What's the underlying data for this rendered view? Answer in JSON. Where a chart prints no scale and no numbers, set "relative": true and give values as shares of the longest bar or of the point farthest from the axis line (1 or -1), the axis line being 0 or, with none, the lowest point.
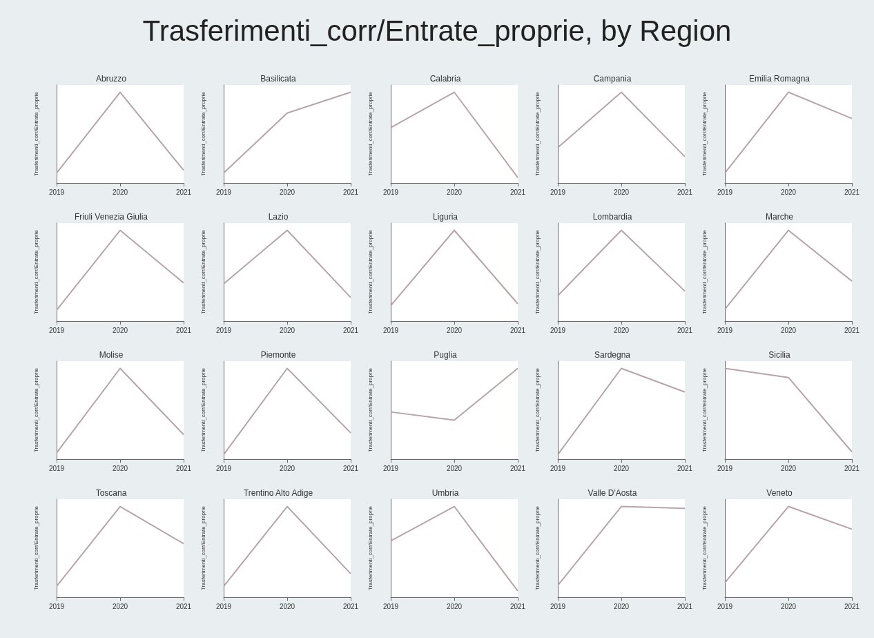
{
  "chart_data": [
    {
      "type": "other",
      "title": "Trasferimenti_corr/Entrate_proprie, by Region"
    },
    {
      "type": "line",
      "title": "Abruzzo",
      "ylabel": "Trasferimenti_corr/Entrate_proprie",
      "categories": [
        "2019",
        "2020",
        "2021"
      ],
      "relative": true,
      "color": "#b8a4a8",
      "values": [
        0.11,
        1,
        0.14
      ]
    },
    {
      "type": "line",
      "title": "Basilicata",
      "ylabel": "Trasferimenti_corr/Entrate_proprie",
      "categories": [
        "2019",
        "2020",
        "2021"
      ],
      "relative": true,
      "color": "#b8a4a8",
      "values": [
        0.11,
        0.77,
        1
      ]
    },
    {
      "type": "line",
      "title": "Calabria",
      "ylabel": "Trasferimenti_corr/Entrate_proprie",
      "categories": [
        "2019",
        "2020",
        "2021"
      ],
      "relative": true,
      "color": "#b8a4a8",
      "values": [
        0.61,
        1,
        0.06
      ]
    },
    {
      "type": "line",
      "title": "Campania",
      "ylabel": "Trasferimenti_corr/Entrate_proprie",
      "categories": [
        "2019",
        "2020",
        "2021"
      ],
      "relative": true,
      "color": "#b8a4a8",
      "values": [
        0.39,
        1,
        0.29
      ]
    },
    {
      "type": "line",
      "title": "Emilia Romagna",
      "ylabel": "Trasferimenti_corr/Entrate_proprie",
      "categories": [
        "2019",
        "2020",
        "2021"
      ],
      "relative": true,
      "color": "#b8a4a8",
      "values": [
        0.11,
        1,
        0.71
      ]
    },
    {
      "type": "line",
      "title": "Friuli Venezia Giulia",
      "ylabel": "Trasferimenti_corr/Entrate_proprie",
      "categories": [
        "2019",
        "2020",
        "2021"
      ],
      "relative": true,
      "color": "#b8a4a8",
      "values": [
        0.12,
        1,
        0.42
      ]
    },
    {
      "type": "line",
      "title": "Lazio",
      "ylabel": "Trasferimenti_corr/Entrate_proprie",
      "categories": [
        "2019",
        "2020",
        "2021"
      ],
      "relative": true,
      "color": "#b8a4a8",
      "values": [
        0.41,
        1,
        0.26
      ]
    },
    {
      "type": "line",
      "title": "Liguria",
      "ylabel": "Trasferimenti_corr/Entrate_proprie",
      "categories": [
        "2019",
        "2020",
        "2021"
      ],
      "relative": true,
      "color": "#b8a4a8",
      "values": [
        0.17,
        1,
        0.19
      ]
    },
    {
      "type": "line",
      "title": "Lombardia",
      "ylabel": "Trasferimenti_corr/Entrate_proprie",
      "categories": [
        "2019",
        "2020",
        "2021"
      ],
      "relative": true,
      "color": "#b8a4a8",
      "values": [
        0.28,
        1,
        0.33
      ]
    },
    {
      "type": "line",
      "title": "Marche",
      "ylabel": "Trasferimenti_corr/Entrate_proprie",
      "categories": [
        "2019",
        "2020",
        "2021"
      ],
      "relative": true,
      "color": "#b8a4a8",
      "values": [
        0.13,
        1,
        0.44
      ]
    },
    {
      "type": "line",
      "title": "Molise",
      "ylabel": "Trasferimenti_corr/Entrate_proprie",
      "categories": [
        "2019",
        "2020",
        "2021"
      ],
      "relative": true,
      "color": "#b8a4a8",
      "values": [
        0.07,
        1,
        0.27
      ]
    },
    {
      "type": "line",
      "title": "Piemonte",
      "ylabel": "Trasferimenti_corr/Entrate_proprie",
      "categories": [
        "2019",
        "2020",
        "2021"
      ],
      "relative": true,
      "color": "#b8a4a8",
      "values": [
        0.05,
        1,
        0.29
      ]
    },
    {
      "type": "line",
      "title": "Puglia",
      "ylabel": "Trasferimenti_corr/Entrate_proprie",
      "categories": [
        "2019",
        "2020",
        "2021"
      ],
      "relative": true,
      "color": "#b8a4a8",
      "values": [
        0.52,
        0.43,
        1
      ]
    },
    {
      "type": "line",
      "title": "Sardegna",
      "ylabel": "Trasferimenti_corr/Entrate_proprie",
      "categories": [
        "2019",
        "2020",
        "2021"
      ],
      "relative": true,
      "color": "#b8a4a8",
      "values": [
        0.05,
        1,
        0.74
      ]
    },
    {
      "type": "line",
      "title": "Sicilia",
      "ylabel": "Trasferimenti_corr/Entrate_proprie",
      "categories": [
        "2019",
        "2020",
        "2021"
      ],
      "relative": true,
      "color": "#b8a4a8",
      "values": [
        1,
        0.9,
        0.08
      ]
    },
    {
      "type": "line",
      "title": "Toscana",
      "ylabel": "Trasferimenti_corr/Entrate_proprie",
      "categories": [
        "2019",
        "2020",
        "2021"
      ],
      "relative": true,
      "color": "#b8a4a8",
      "values": [
        0.12,
        1,
        0.59
      ]
    },
    {
      "type": "line",
      "title": "Trentino Alto Adige",
      "ylabel": "Trasferimenti_corr/Entrate_proprie",
      "categories": [
        "2019",
        "2020",
        "2021"
      ],
      "relative": true,
      "color": "#b8a4a8",
      "values": [
        0.12,
        1,
        0.26
      ]
    },
    {
      "type": "line",
      "title": "Umbria",
      "ylabel": "Trasferimenti_corr/Entrate_proprie",
      "categories": [
        "2019",
        "2020",
        "2021"
      ],
      "relative": true,
      "color": "#b8a4a8",
      "values": [
        0.62,
        1,
        0.07
      ]
    },
    {
      "type": "line",
      "title": "Valle D'Aosta",
      "ylabel": "Trasferimenti_corr/Entrate_proprie",
      "categories": [
        "2019",
        "2020",
        "2021"
      ],
      "relative": true,
      "color": "#b8a4a8",
      "values": [
        0.13,
        1,
        0.98
      ]
    },
    {
      "type": "line",
      "title": "Veneto",
      "ylabel": "Trasferimenti_corr/Entrate_proprie",
      "categories": [
        "2019",
        "2020",
        "2021"
      ],
      "relative": true,
      "color": "#b8a4a8",
      "values": [
        0.16,
        1,
        0.75
      ]
    }
  ]
}
